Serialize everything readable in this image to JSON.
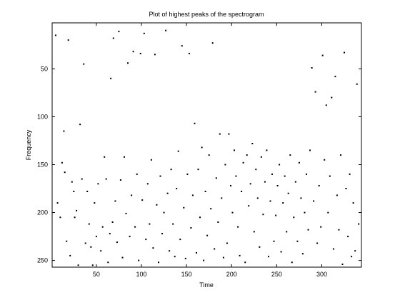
{
  "chart_data": {
    "type": "scatter",
    "title": "Plot of highest peaks of the spectrogram",
    "xlabel": "Time",
    "ylabel": "Frequency",
    "xlim": [
      1,
      344
    ],
    "ylim": [
      257,
      2
    ],
    "y_reversed": true,
    "xticks": [
      50,
      100,
      150,
      200,
      250,
      300
    ],
    "yticks": [
      50,
      100,
      150,
      200,
      250
    ],
    "grid": false,
    "legend": "none",
    "marker_color": "#000000",
    "points": [
      [
        5,
        15
      ],
      [
        7,
        190
      ],
      [
        10,
        205
      ],
      [
        12,
        148
      ],
      [
        14,
        115
      ],
      [
        15,
        158
      ],
      [
        17,
        230
      ],
      [
        19,
        20
      ],
      [
        21,
        245
      ],
      [
        23,
        168
      ],
      [
        25,
        178
      ],
      [
        26,
        205
      ],
      [
        28,
        198
      ],
      [
        30,
        255
      ],
      [
        32,
        108
      ],
      [
        34,
        165
      ],
      [
        36,
        45
      ],
      [
        38,
        232
      ],
      [
        40,
        178
      ],
      [
        42,
        212
      ],
      [
        44,
        236
      ],
      [
        46,
        255
      ],
      [
        48,
        190
      ],
      [
        50,
        225
      ],
      [
        52,
        170
      ],
      [
        55,
        240
      ],
      [
        57,
        215
      ],
      [
        59,
        142
      ],
      [
        61,
        165
      ],
      [
        63,
        252
      ],
      [
        65,
        222
      ],
      [
        66,
        60
      ],
      [
        68,
        210
      ],
      [
        69,
        18
      ],
      [
        71,
        188
      ],
      [
        73,
        231
      ],
      [
        75,
        11
      ],
      [
        77,
        166
      ],
      [
        79,
        247
      ],
      [
        81,
        142
      ],
      [
        83,
        201
      ],
      [
        85,
        44
      ],
      [
        87,
        225
      ],
      [
        89,
        182
      ],
      [
        91,
        32
      ],
      [
        93,
        215
      ],
      [
        95,
        160
      ],
      [
        97,
        250
      ],
      [
        99,
        34
      ],
      [
        101,
        187
      ],
      [
        103,
        13
      ],
      [
        105,
        228
      ],
      [
        107,
        170
      ],
      [
        109,
        212
      ],
      [
        111,
        145
      ],
      [
        113,
        237
      ],
      [
        115,
        35
      ],
      [
        117,
        192
      ],
      [
        119,
        252
      ],
      [
        121,
        162
      ],
      [
        123,
        222
      ],
      [
        125,
        200
      ],
      [
        127,
        10
      ],
      [
        129,
        180
      ],
      [
        131,
        240
      ],
      [
        133,
        155
      ],
      [
        135,
        212
      ],
      [
        137,
        246
      ],
      [
        139,
        175
      ],
      [
        141,
        136
      ],
      [
        143,
        228
      ],
      [
        145,
        26
      ],
      [
        147,
        195
      ],
      [
        149,
        248
      ],
      [
        151,
        160
      ],
      [
        153,
        34
      ],
      [
        155,
        216
      ],
      [
        157,
        182
      ],
      [
        159,
        107
      ],
      [
        161,
        242
      ],
      [
        163,
        155
      ],
      [
        165,
        205
      ],
      [
        167,
        132
      ],
      [
        169,
        250
      ],
      [
        171,
        178
      ],
      [
        173,
        224
      ],
      [
        175,
        140
      ],
      [
        177,
        196
      ],
      [
        179,
        23
      ],
      [
        181,
        238
      ],
      [
        183,
        164
      ],
      [
        185,
        210
      ],
      [
        187,
        118
      ],
      [
        189,
        185
      ],
      [
        191,
        247
      ],
      [
        193,
        150
      ],
      [
        195,
        232
      ],
      [
        197,
        118
      ],
      [
        199,
        172
      ],
      [
        201,
        200
      ],
      [
        203,
        135
      ],
      [
        205,
        162
      ],
      [
        207,
        215
      ],
      [
        209,
        245
      ],
      [
        211,
        178
      ],
      [
        213,
        148
      ],
      [
        215,
        252
      ],
      [
        217,
        140
      ],
      [
        219,
        193
      ],
      [
        221,
        170
      ],
      [
        223,
        128
      ],
      [
        225,
        220
      ],
      [
        227,
        155
      ],
      [
        229,
        185
      ],
      [
        231,
        236
      ],
      [
        233,
        142
      ],
      [
        235,
        202
      ],
      [
        237,
        168
      ],
      [
        239,
        135
      ],
      [
        241,
        246
      ],
      [
        243,
        188
      ],
      [
        245,
        160
      ],
      [
        247,
        230
      ],
      [
        249,
        203
      ],
      [
        251,
        172
      ],
      [
        253,
        150
      ],
      [
        255,
        241
      ],
      [
        257,
        190
      ],
      [
        259,
        162
      ],
      [
        261,
        220
      ],
      [
        263,
        180
      ],
      [
        265,
        140
      ],
      [
        267,
        252
      ],
      [
        269,
        205
      ],
      [
        271,
        168
      ],
      [
        273,
        230
      ],
      [
        275,
        148
      ],
      [
        277,
        185
      ],
      [
        279,
        243
      ],
      [
        281,
        200
      ],
      [
        283,
        160
      ],
      [
        285,
        218
      ],
      [
        287,
        135
      ],
      [
        289,
        49
      ],
      [
        291,
        188
      ],
      [
        293,
        74
      ],
      [
        295,
        232
      ],
      [
        297,
        172
      ],
      [
        299,
        215
      ],
      [
        301,
        36
      ],
      [
        303,
        145
      ],
      [
        305,
        88
      ],
      [
        307,
        200
      ],
      [
        309,
        162
      ],
      [
        311,
        80
      ],
      [
        313,
        238
      ],
      [
        315,
        58
      ],
      [
        317,
        182
      ],
      [
        319,
        218
      ],
      [
        321,
        140
      ],
      [
        323,
        254
      ],
      [
        325,
        33
      ],
      [
        327,
        175
      ],
      [
        329,
        225
      ],
      [
        331,
        160
      ],
      [
        333,
        246
      ],
      [
        335,
        190
      ],
      [
        337,
        240
      ],
      [
        339,
        66
      ],
      [
        341,
        212
      ]
    ]
  }
}
